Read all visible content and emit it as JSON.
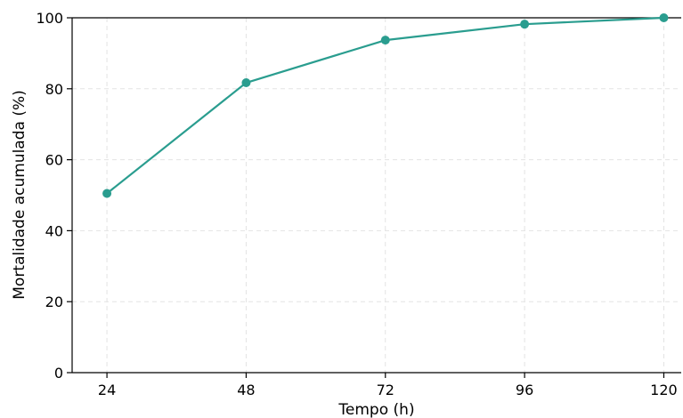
{
  "chart_data": {
    "type": "line",
    "title": "",
    "xlabel": "Tempo (h)",
    "ylabel": "Mortalidade acumulada (%)",
    "x": [
      24,
      48,
      72,
      96,
      120
    ],
    "x_ticks": [
      "24",
      "48",
      "72",
      "96",
      "120"
    ],
    "y_ticks": [
      "0",
      "20",
      "40",
      "60",
      "80",
      "100"
    ],
    "xlim": [
      18,
      123
    ],
    "ylim": [
      0,
      100
    ],
    "grid": true,
    "legend": "none",
    "series": [
      {
        "values": [
          50.5,
          81.7,
          93.7,
          98.2,
          100.0
        ],
        "color": "#2a9d8f",
        "marker": "circle"
      }
    ]
  }
}
